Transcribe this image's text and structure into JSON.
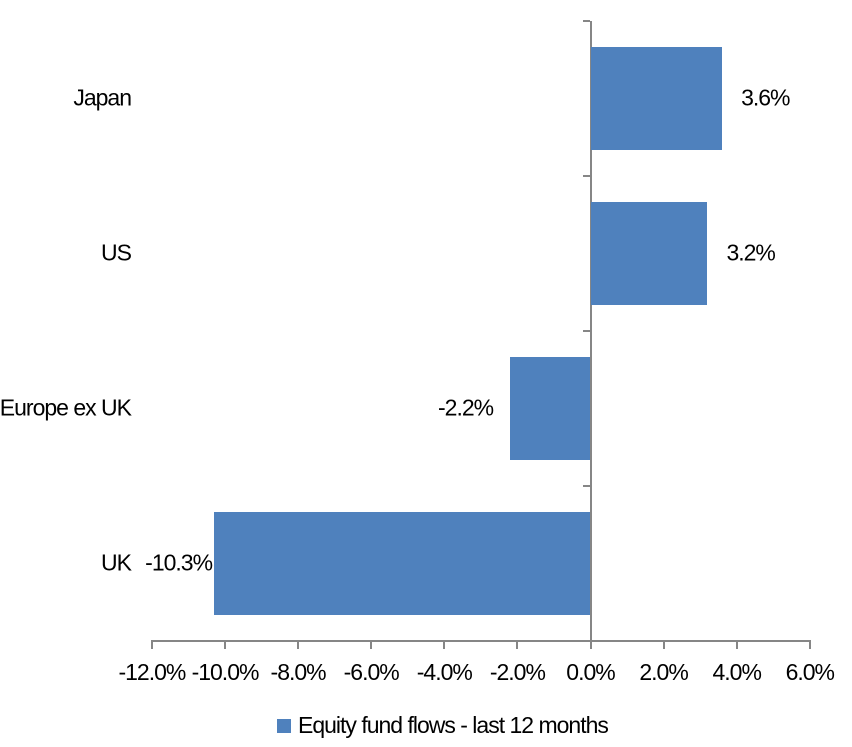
{
  "chart_data": {
    "type": "bar",
    "orientation": "horizontal",
    "categories": [
      "Japan",
      "US",
      "Europe ex UK",
      "UK"
    ],
    "series": [
      {
        "name": "Equity fund flows - last 12 months",
        "values": [
          3.6,
          3.2,
          -2.2,
          -10.3
        ],
        "value_labels": [
          "3.6%",
          "3.2%",
          "-2.2%",
          "-10.3%"
        ]
      }
    ],
    "xlabel": "",
    "ylabel": "",
    "xlim": [
      -12,
      6
    ],
    "x_tick_values": [
      -12,
      -10,
      -8,
      -6,
      -4,
      -2,
      0,
      2,
      4,
      6
    ],
    "x_tick_labels": [
      "-12.0%",
      "-10.0%",
      "-8.0%",
      "-6.0%",
      "-4.0%",
      "-2.0%",
      "0.0%",
      "2.0%",
      "4.0%",
      "6.0%"
    ],
    "grid": false,
    "legend": {
      "position": "bottom-center",
      "label": "Equity fund flows - last 12 months"
    },
    "colors": {
      "series": "#4F81BD",
      "axis": "#868686",
      "text": "#000000",
      "background": "#FFFFFF"
    }
  }
}
